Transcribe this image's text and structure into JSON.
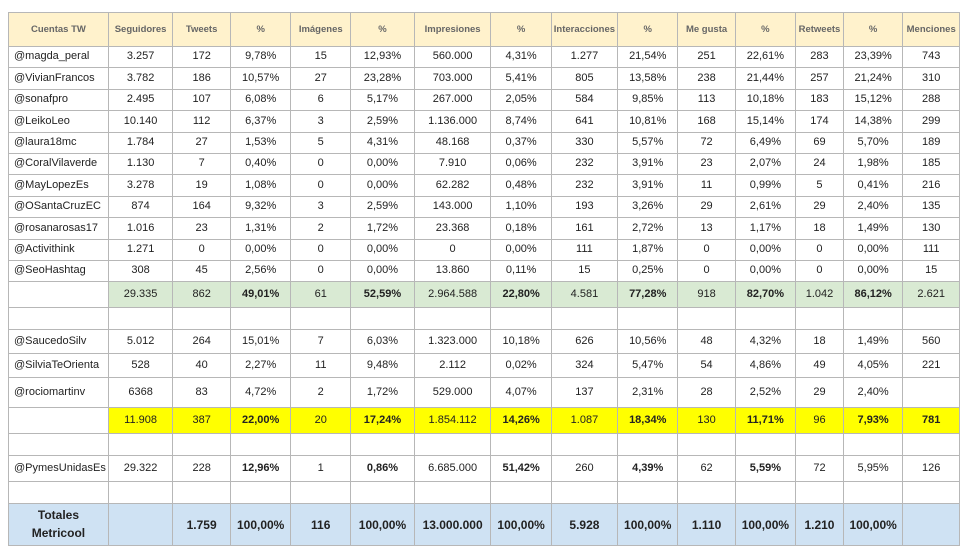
{
  "headers": [
    "Cuentas TW",
    "Seguidores",
    "Tweets",
    "%",
    "Imágenes",
    "%",
    "Impresiones",
    "%",
    "Interacciones",
    "%",
    "Me gusta",
    "%",
    "Retweets",
    "%",
    "Menciones"
  ],
  "group1": [
    [
      "@magda_peral",
      "3.257",
      "172",
      "9,78%",
      "15",
      "12,93%",
      "560.000",
      "4,31%",
      "1.277",
      "21,54%",
      "251",
      "22,61%",
      "283",
      "23,39%",
      "743"
    ],
    [
      "@VivianFrancos",
      "3.782",
      "186",
      "10,57%",
      "27",
      "23,28%",
      "703.000",
      "5,41%",
      "805",
      "13,58%",
      "238",
      "21,44%",
      "257",
      "21,24%",
      "310"
    ],
    [
      "@sonafpro",
      "2.495",
      "107",
      "6,08%",
      "6",
      "5,17%",
      "267.000",
      "2,05%",
      "584",
      "9,85%",
      "113",
      "10,18%",
      "183",
      "15,12%",
      "288"
    ],
    [
      "@LeikoLeo",
      "10.140",
      "112",
      "6,37%",
      "3",
      "2,59%",
      "1.136.000",
      "8,74%",
      "641",
      "10,81%",
      "168",
      "15,14%",
      "174",
      "14,38%",
      "299"
    ],
    [
      "@laura18mc",
      "1.784",
      "27",
      "1,53%",
      "5",
      "4,31%",
      "48.168",
      "0,37%",
      "330",
      "5,57%",
      "72",
      "6,49%",
      "69",
      "5,70%",
      "189"
    ],
    [
      "@CoralVilaverde",
      "1.130",
      "7",
      "0,40%",
      "0",
      "0,00%",
      "7.910",
      "0,06%",
      "232",
      "3,91%",
      "23",
      "2,07%",
      "24",
      "1,98%",
      "185"
    ],
    [
      "@MayLopezEs",
      "3.278",
      "19",
      "1,08%",
      "0",
      "0,00%",
      "62.282",
      "0,48%",
      "232",
      "3,91%",
      "11",
      "0,99%",
      "5",
      "0,41%",
      "216"
    ],
    [
      "@OSantaCruzEC",
      "874",
      "164",
      "9,32%",
      "3",
      "2,59%",
      "143.000",
      "1,10%",
      "193",
      "3,26%",
      "29",
      "2,61%",
      "29",
      "2,40%",
      "135"
    ],
    [
      "@rosanarosas17",
      "1.016",
      "23",
      "1,31%",
      "2",
      "1,72%",
      "23.368",
      "0,18%",
      "161",
      "2,72%",
      "13",
      "1,17%",
      "18",
      "1,49%",
      "130"
    ],
    [
      "@Activithink",
      "1.271",
      "0",
      "0,00%",
      "0",
      "0,00%",
      "0",
      "0,00%",
      "111",
      "1,87%",
      "0",
      "0,00%",
      "0",
      "0,00%",
      "111"
    ],
    [
      "@SeoHashtag",
      "308",
      "45",
      "2,56%",
      "0",
      "0,00%",
      "13.860",
      "0,11%",
      "15",
      "0,25%",
      "0",
      "0,00%",
      "0",
      "0,00%",
      "15"
    ]
  ],
  "group1_total": [
    "",
    "29.335",
    "862",
    "49,01%",
    "61",
    "52,59%",
    "2.964.588",
    "22,80%",
    "4.581",
    "77,28%",
    "918",
    "82,70%",
    "1.042",
    "86,12%",
    "2.621"
  ],
  "group2": [
    [
      "@SaucedoSilv",
      "5.012",
      "264",
      "15,01%",
      "7",
      "6,03%",
      "1.323.000",
      "10,18%",
      "626",
      "10,56%",
      "48",
      "4,32%",
      "18",
      "1,49%",
      "560"
    ],
    [
      "@SilviaTeOrienta",
      "528",
      "40",
      "2,27%",
      "11",
      "9,48%",
      "2.112",
      "0,02%",
      "324",
      "5,47%",
      "54",
      "4,86%",
      "49",
      "4,05%",
      "221"
    ],
    [
      "@rociomartinv",
      "6368",
      "83",
      "4,72%",
      "2",
      "1,72%",
      "529.000",
      "4,07%",
      "137",
      "2,31%",
      "28",
      "2,52%",
      "29",
      "2,40%",
      ""
    ]
  ],
  "group2_total": [
    "",
    "11.908",
    "387",
    "22,00%",
    "20",
    "17,24%",
    "1.854.112",
    "14,26%",
    "1.087",
    "18,34%",
    "130",
    "11,71%",
    "96",
    "7,93%",
    "781"
  ],
  "group3": [
    [
      "@PymesUnidasEs",
      "29.322",
      "228",
      "12,96%",
      "1",
      "0,86%",
      "6.685.000",
      "51,42%",
      "260",
      "4,39%",
      "62",
      "5,59%",
      "72",
      "5,95%",
      "126"
    ]
  ],
  "totals": {
    "label_line1": "Totales",
    "label_line2": "Metricool",
    "values": [
      "",
      "1.759",
      "100,00%",
      "116",
      "100,00%",
      "13.000.000",
      "100,00%",
      "5.928",
      "100,00%",
      "1.110",
      "100,00%",
      "1.210",
      "100,00%",
      ""
    ]
  }
}
